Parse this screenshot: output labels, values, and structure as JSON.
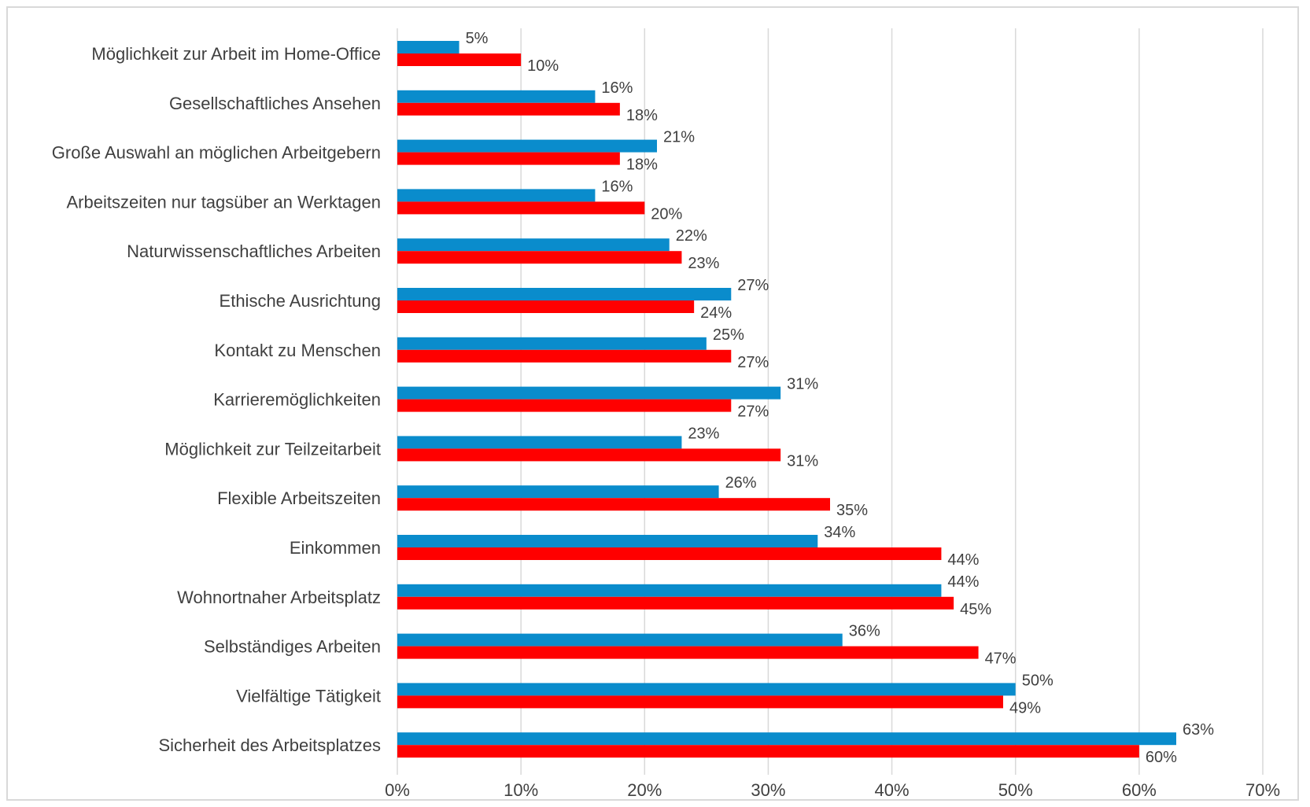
{
  "chart_data": {
    "type": "bar",
    "orientation": "horizontal",
    "categories": [
      "Möglichkeit zur Arbeit im Home-Office",
      "Gesellschaftliches Ansehen",
      "Große Auswahl an möglichen Arbeitgebern",
      "Arbeitszeiten nur tagsüber an Werktagen",
      "Naturwissenschaftliches Arbeiten",
      "Ethische Ausrichtung",
      "Kontakt zu Menschen",
      "Karrieremöglichkeiten",
      "Möglichkeit zur Teilzeitarbeit",
      "Flexible Arbeitszeiten",
      "Einkommen",
      "Wohnortnaher Arbeitsplatz",
      "Selbständiges Arbeiten",
      "Vielfältige Tätigkeit",
      "Sicherheit des Arbeitsplatzes"
    ],
    "series": [
      {
        "color": "#0a8ccc",
        "values": [
          5,
          16,
          21,
          16,
          22,
          27,
          25,
          31,
          23,
          26,
          34,
          44,
          36,
          50,
          63
        ],
        "labels": [
          "5%",
          "16%",
          "21%",
          "16%",
          "22%",
          "27%",
          "25%",
          "31%",
          "23%",
          "26%",
          "34%",
          "44%",
          "36%",
          "50%",
          "63%"
        ]
      },
      {
        "color": "#ff0000",
        "values": [
          10,
          18,
          18,
          20,
          23,
          24,
          27,
          27,
          31,
          35,
          44,
          45,
          47,
          49,
          60
        ],
        "labels": [
          "10%",
          "18%",
          "18%",
          "20%",
          "23%",
          "24%",
          "27%",
          "27%",
          "31%",
          "35%",
          "44%",
          "45%",
          "47%",
          "49%",
          "60%"
        ]
      }
    ],
    "xlim": [
      0,
      70
    ],
    "x_ticks": [
      0,
      10,
      20,
      30,
      40,
      50,
      60,
      70
    ],
    "x_tick_labels": [
      "0%",
      "10%",
      "20%",
      "30%",
      "40%",
      "50%",
      "60%",
      "70%"
    ],
    "grid": true,
    "legend": "none",
    "title": "",
    "xlabel": "",
    "ylabel": ""
  }
}
